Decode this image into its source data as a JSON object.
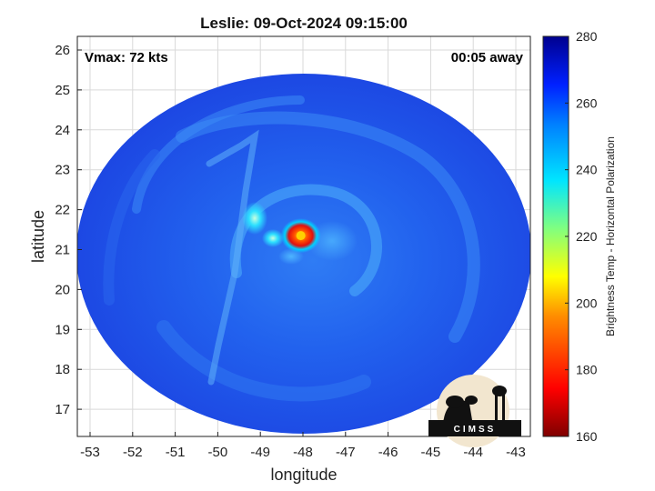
{
  "title": "Leslie: 09-Oct-2024 09:15:00",
  "vmax_label": "Vmax: 72 kts",
  "time_offset_label": "00:05 away",
  "xlabel": "longitude",
  "ylabel": "latitude",
  "x_ticks": [
    "-53",
    "-52",
    "-51",
    "-50",
    "-49",
    "-48",
    "-47",
    "-46",
    "-45",
    "-44",
    "-43"
  ],
  "y_ticks": [
    "26",
    "25",
    "24",
    "23",
    "22",
    "21",
    "20",
    "19",
    "18",
    "17"
  ],
  "colorbar": {
    "label": "Brightness Temp - Horizontal Polarization",
    "ticks": [
      "280",
      "260",
      "240",
      "220",
      "200",
      "180",
      "160"
    ],
    "range": [
      160,
      280
    ]
  },
  "logo_text": "CIMSS",
  "storm_center": {
    "lon": -48.05,
    "lat": 21.35
  },
  "colors": {
    "background_blue": "#1f4fe6",
    "eyewall_hot": "#ff3a00"
  }
}
